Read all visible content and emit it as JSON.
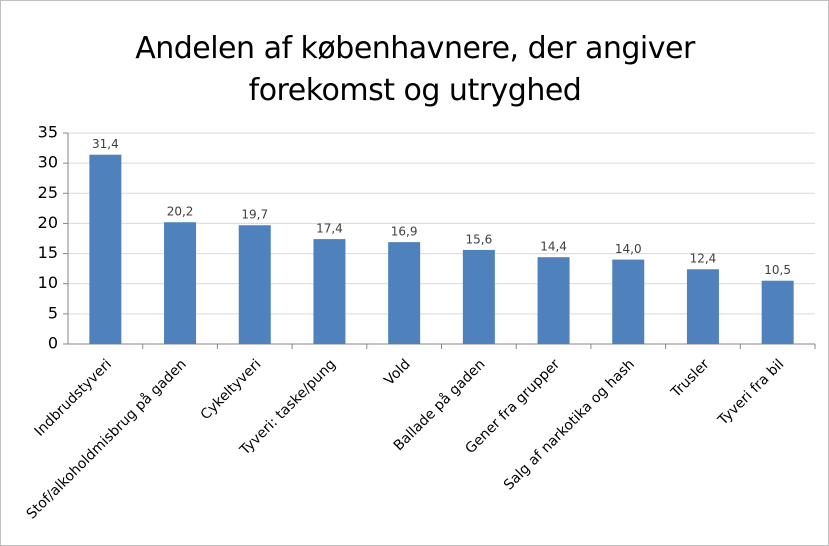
{
  "chart_data": {
    "type": "bar",
    "title": "Andelen af københavnere, der angiver forekomst og utryghed",
    "categories": [
      "Indbrudstyveri",
      "Stof/alkoholdmisbrug på gaden",
      "Cykeltyveri",
      "Tyveri: taske/pung",
      "Vold",
      "Ballade på gaden",
      "Gener fra grupper",
      "Salg af narkotika og hash",
      "Trusler",
      "Tyveri fra bil"
    ],
    "values": [
      31.4,
      20.2,
      19.7,
      17.4,
      16.9,
      15.6,
      14.4,
      14.0,
      12.4,
      10.5
    ],
    "value_labels": [
      "31,4",
      "20,2",
      "19,7",
      "17,4",
      "16,9",
      "15,6",
      "14,4",
      "14,0",
      "12,4",
      "10,5"
    ],
    "color": "#4f81bd",
    "ylim": [
      0,
      35
    ],
    "yticks": [
      0,
      5,
      10,
      15,
      20,
      25,
      30,
      35
    ],
    "grid": true
  }
}
